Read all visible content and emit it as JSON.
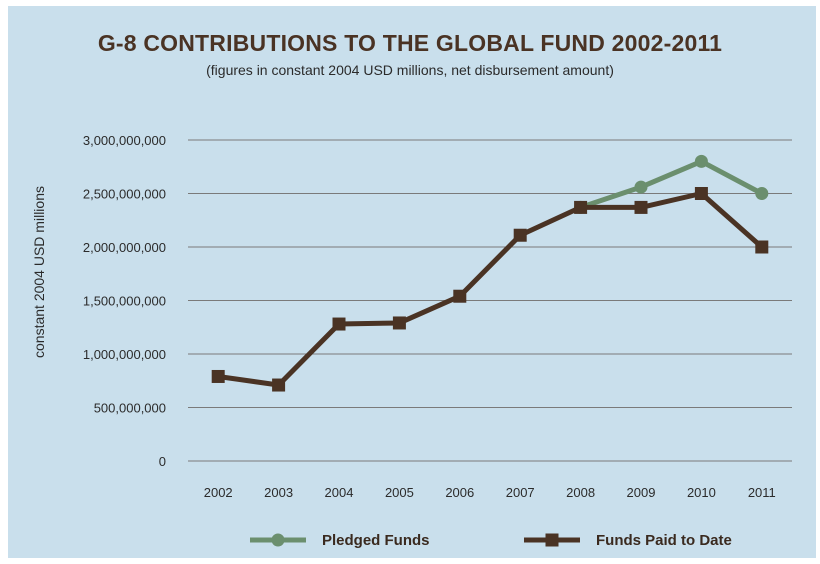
{
  "colors": {
    "background": "#c9dfec",
    "pledged": "#6b8f6e",
    "paid": "#4a3324",
    "grid": "#7a7a7a"
  },
  "chart_data": {
    "type": "line",
    "title": "G-8 CONTRIBUTIONS TO THE GLOBAL FUND 2002-2011",
    "subtitle": "(figures in constant 2004 USD millions, net disbursement amount)",
    "xlabel": "",
    "ylabel": "constant 2004 USD millions",
    "categories": [
      "2002",
      "2003",
      "2004",
      "2005",
      "2006",
      "2007",
      "2008",
      "2009",
      "2010",
      "2011"
    ],
    "ylim": [
      0,
      3000000000
    ],
    "yticks": [
      0,
      500000000,
      1000000000,
      1500000000,
      2000000000,
      2500000000,
      3000000000
    ],
    "ytick_labels": [
      "0",
      "500,000,000",
      "1,000,000,000",
      "1,500,000,000",
      "2,000,000,000",
      "2,500,000,000",
      "3,000,000,000"
    ],
    "grid": true,
    "legend_position": "bottom",
    "series": [
      {
        "name": "Pledged Funds",
        "marker": "circle",
        "values": [
          null,
          null,
          null,
          null,
          null,
          null,
          2370000000,
          2560000000,
          2800000000,
          2500000000
        ]
      },
      {
        "name": "Funds Paid to Date",
        "marker": "square",
        "values": [
          790000000,
          710000000,
          1280000000,
          1290000000,
          1540000000,
          2110000000,
          2370000000,
          2370000000,
          2500000000,
          2000000000
        ]
      }
    ]
  }
}
